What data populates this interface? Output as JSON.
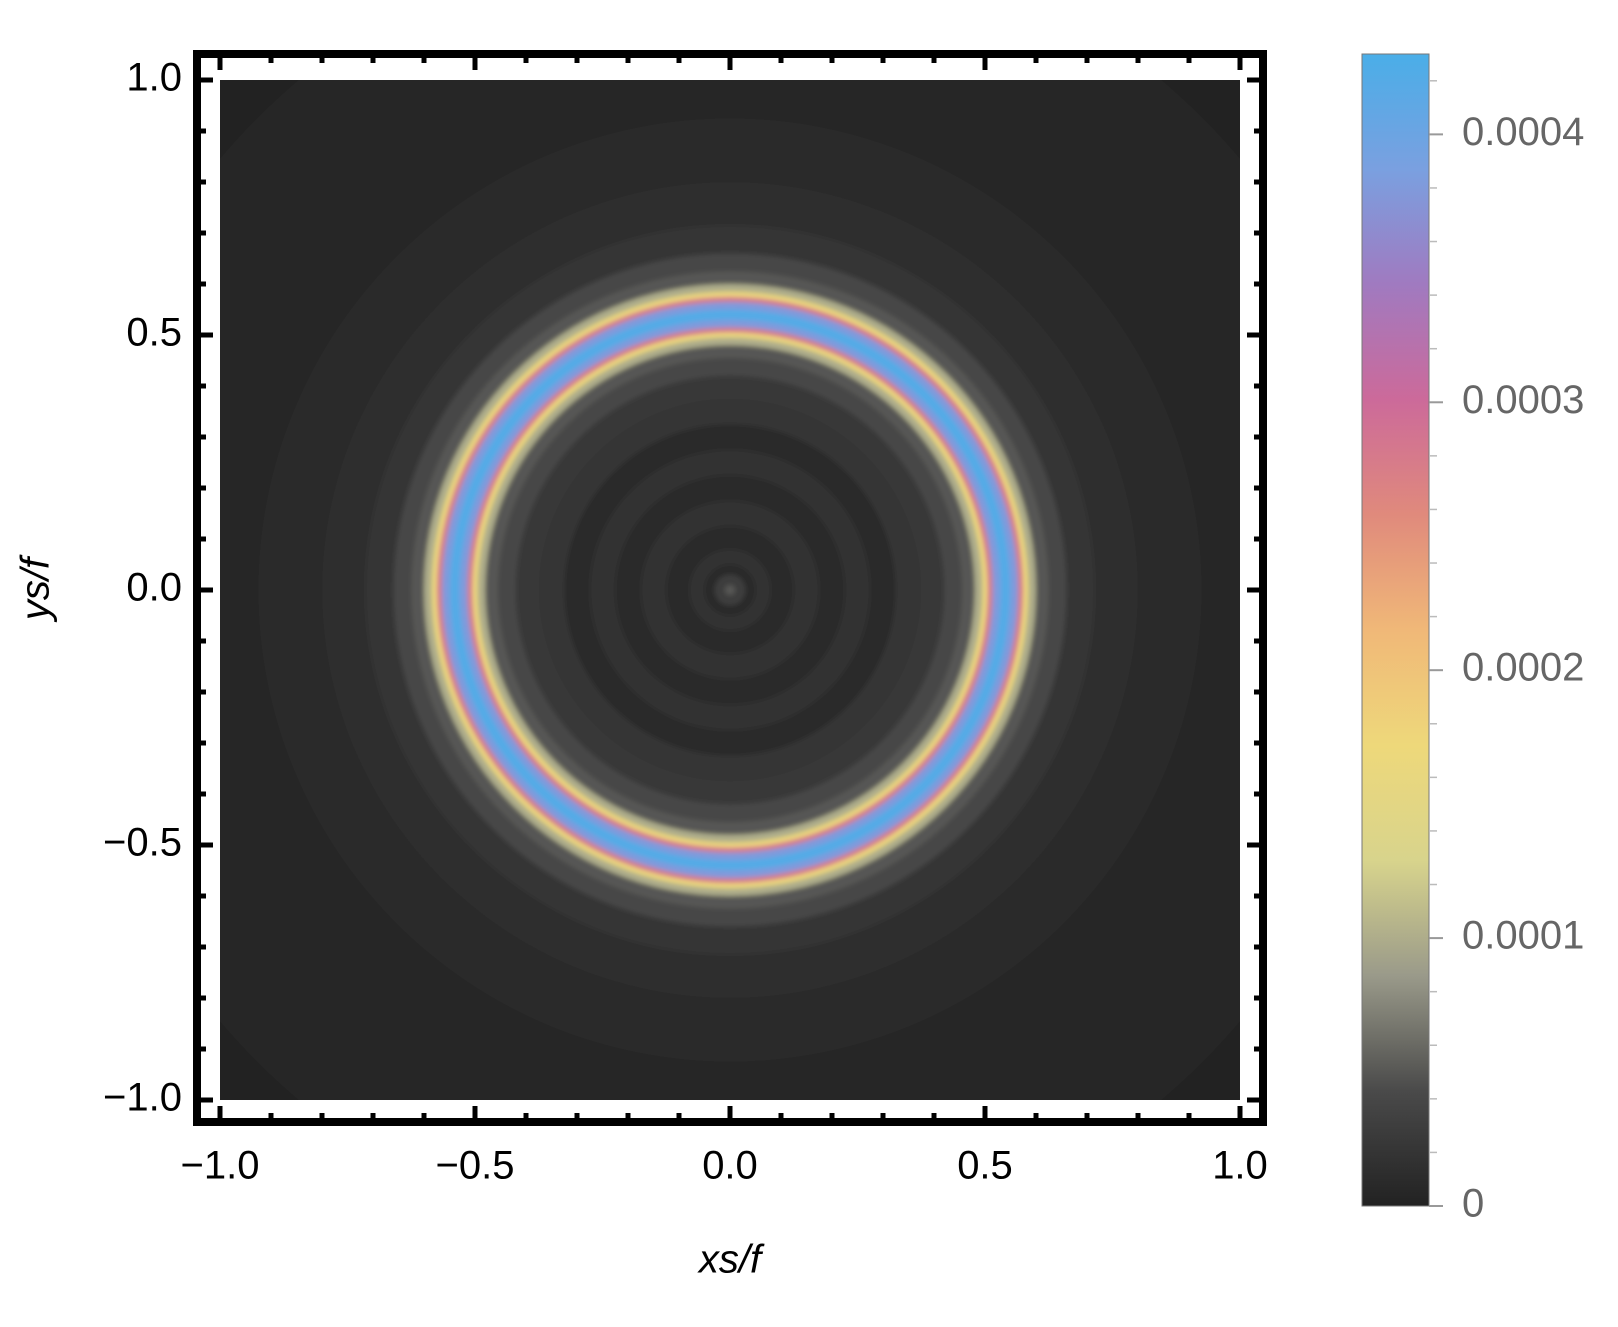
{
  "chart_data": {
    "type": "radial-density",
    "x_label": "xs/f",
    "y_label": "ys/f",
    "xlim": [
      -1,
      1
    ],
    "ylim": [
      -1,
      1
    ],
    "xticks": [
      {
        "value": -1,
        "label": "−1.0"
      },
      {
        "value": -0.5,
        "label": "−0.5"
      },
      {
        "value": 0,
        "label": "0.0"
      },
      0.5,
      {
        "value": 1,
        "label": "1.0"
      }
    ],
    "yticks": [
      {
        "value": -1,
        "label": "−1.0"
      },
      {
        "value": -0.5,
        "label": "−0.5"
      },
      {
        "value": 0,
        "label": "0.0"
      },
      0.5,
      {
        "value": 1,
        "label": "1.0"
      }
    ],
    "minor_ticks": [
      -0.9,
      -0.8,
      -0.7,
      -0.6,
      -0.4,
      -0.3,
      -0.2,
      -0.1,
      0.1,
      0.2,
      0.3,
      0.4,
      0.6,
      0.7,
      0.8,
      0.9
    ],
    "radii": [
      0,
      0.02,
      0.04,
      0.06,
      0.1,
      0.15,
      0.2,
      0.25,
      0.3,
      0.35,
      0.4,
      0.44,
      0.47,
      0.49,
      0.5,
      0.51,
      0.52,
      0.54,
      0.56,
      0.57,
      0.58,
      0.59,
      0.61,
      0.64,
      0.68,
      0.75,
      0.85,
      1.0,
      1.2,
      1.42
    ],
    "values": [
      5e-05,
      3e-05,
      1e-05,
      1.5e-05,
      1e-05,
      1.5e-05,
      1e-05,
      1.5e-05,
      1e-05,
      2e-05,
      2.5e-05,
      4e-05,
      5e-05,
      0.0001,
      0.00017,
      0.00028,
      0.00038,
      0.00042,
      0.00038,
      0.00028,
      0.00017,
      0.0001,
      5e-05,
      4e-05,
      2e-05,
      1.2e-05,
      8e-06,
      5e-06,
      3e-06,
      2e-06
    ],
    "colorbar": {
      "lim": [
        0,
        0.00043
      ],
      "ticks": [
        0,
        0.0001,
        0.0002,
        0.0003,
        0.0004
      ],
      "minor_ticks": [
        2e-05,
        4e-05,
        6e-05,
        8e-05,
        0.00012,
        0.00014,
        0.00016,
        0.00018,
        0.00022,
        0.00024,
        0.00026,
        0.00028,
        0.00032,
        0.00034,
        0.00036,
        0.00038,
        0.00042
      ],
      "colors": [
        "#222222",
        "#4a4a4a",
        "#9a9a8a",
        "#d8d48c",
        "#eed87a",
        "#f0b878",
        "#e08a7c",
        "#cc6a9a",
        "#a07ac0",
        "#7aa0e0",
        "#4aaee8"
      ]
    }
  }
}
